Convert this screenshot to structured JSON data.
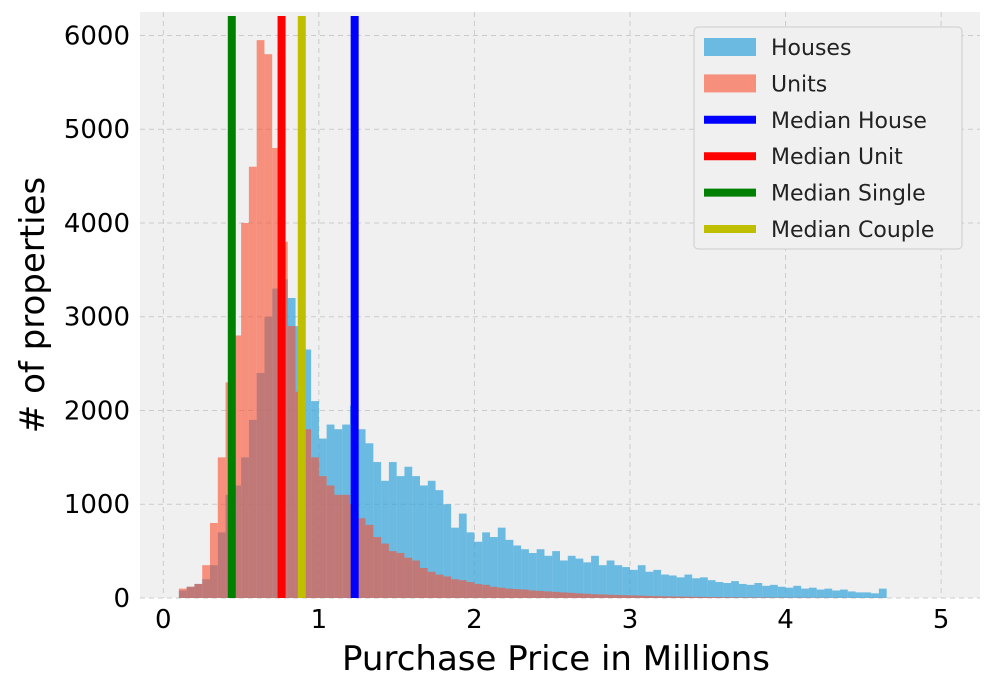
{
  "chart_data": {
    "type": "bar",
    "title": "",
    "xlabel": "Purchase Price in Millions",
    "ylabel": "# of properties",
    "xlim": [
      -0.15,
      5.25
    ],
    "ylim": [
      0,
      6250
    ],
    "xticks": [
      0,
      1,
      2,
      3,
      4,
      5
    ],
    "xtick_labels": [
      "0",
      "1",
      "2",
      "3",
      "4",
      "5"
    ],
    "yticks": [
      0,
      1000,
      2000,
      3000,
      4000,
      5000,
      6000
    ],
    "ytick_labels": [
      "0",
      "1000",
      "2000",
      "3000",
      "4000",
      "5000",
      "6000"
    ],
    "grid": true,
    "legend_position": "top-right",
    "bin_start": 0.1,
    "bin_width": 0.05,
    "series": [
      {
        "name": "Houses",
        "color": "#30a2da",
        "values": [
          80,
          120,
          150,
          200,
          350,
          700,
          1100,
          1200,
          1500,
          1900,
          2400,
          3000,
          3300,
          3400,
          3200,
          2900,
          2650,
          2100,
          1700,
          1850,
          1800,
          1850,
          2050,
          1800,
          1650,
          1450,
          1250,
          1450,
          1300,
          1400,
          1300,
          1200,
          1250,
          1150,
          1000,
          750,
          900,
          700,
          600,
          700,
          650,
          750,
          620,
          560,
          520,
          480,
          520,
          450,
          500,
          400,
          450,
          420,
          380,
          450,
          350,
          400,
          350,
          330,
          300,
          350,
          280,
          300,
          250,
          240,
          220,
          250,
          210,
          220,
          190,
          170,
          160,
          180,
          150,
          140,
          160,
          130,
          140,
          120,
          110,
          130,
          100,
          110,
          90,
          100,
          80,
          90,
          70,
          60,
          60,
          50,
          100
        ]
      },
      {
        "name": "Units",
        "color": "#fc4f30",
        "values": [
          100,
          120,
          150,
          350,
          800,
          1500,
          2300,
          2800,
          4000,
          4600,
          5950,
          5800,
          4800,
          3800,
          2900,
          2200,
          1800,
          1500,
          1300,
          1200,
          1100,
          1100,
          1000,
          850,
          780,
          650,
          580,
          500,
          480,
          430,
          400,
          320,
          280,
          250,
          230,
          200,
          190,
          170,
          150,
          140,
          120,
          110,
          100,
          95,
          90,
          80,
          75,
          70,
          65,
          60,
          55,
          50,
          45,
          40,
          38,
          35,
          32,
          30,
          28,
          25,
          22,
          20,
          18,
          16,
          15,
          14,
          12,
          11,
          10,
          9,
          8,
          7,
          6,
          6,
          5,
          5,
          4,
          4,
          3,
          3,
          3,
          2,
          2,
          2,
          2,
          1,
          1,
          1,
          1,
          1,
          1
        ]
      },
      {
        "name": "Median House",
        "color": "#0000ff",
        "value": 1.23
      },
      {
        "name": "Median Unit",
        "color": "#ff0000",
        "value": 0.76
      },
      {
        "name": "Median Single",
        "color": "#008000",
        "value": 0.44
      },
      {
        "name": "Median Couple",
        "color": "#bfbf00",
        "value": 0.89
      }
    ]
  }
}
